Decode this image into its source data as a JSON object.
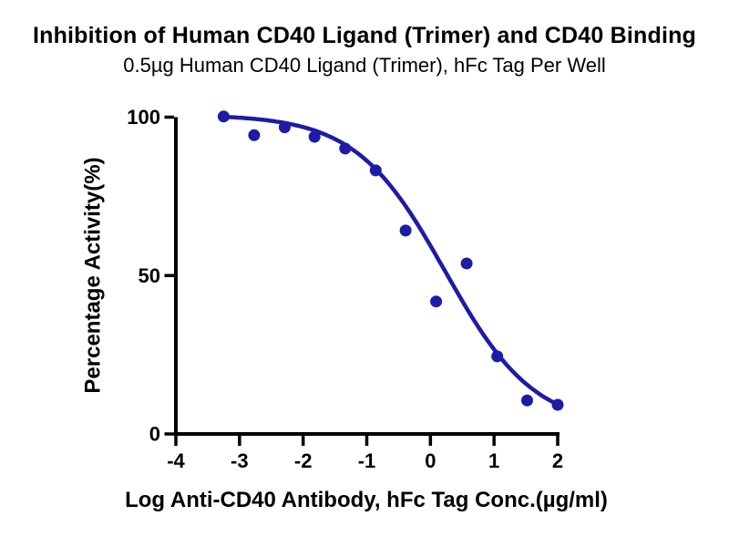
{
  "page": {
    "background": "#FFFFFF"
  },
  "header": {
    "title": "Inhibition of Human CD40 Ligand (Trimer) and CD40 Binding",
    "subtitle": "0.5µg Human CD40 Ligand (Trimer), hFc Tag Per Well"
  },
  "chart_data": {
    "type": "scatter",
    "title": "Inhibition of Human CD40 Ligand (Trimer) and CD40 Binding",
    "subtitle": "0.5µg Human CD40 Ligand (Trimer), hFc Tag Per Well",
    "xlabel": "Log Anti-CD40 Antibody, hFc Tag Conc.(µg/ml)",
    "ylabel": "Percentage Activity(%)",
    "xlim": [
      -4,
      2
    ],
    "ylim": [
      0,
      100
    ],
    "xticks": [
      -4,
      -3,
      -2,
      -1,
      0,
      1,
      2
    ],
    "yticks": [
      0,
      50,
      100
    ],
    "grid": false,
    "legend": "none",
    "axis_color": "#000000",
    "series": [
      {
        "name": "Anti-CD40 Antibody, hFc Tag",
        "marker": "circle",
        "marker_color": "#1C1CA6",
        "points": [
          {
            "x": -3.25,
            "y": 100.2
          },
          {
            "x": -2.77,
            "y": 94.3
          },
          {
            "x": -2.29,
            "y": 96.8
          },
          {
            "x": -1.82,
            "y": 93.8
          },
          {
            "x": -1.34,
            "y": 90.1
          },
          {
            "x": -0.86,
            "y": 83.2
          },
          {
            "x": -0.39,
            "y": 64.2
          },
          {
            "x": 0.09,
            "y": 41.8
          },
          {
            "x": 0.57,
            "y": 53.8
          },
          {
            "x": 1.05,
            "y": 24.5
          },
          {
            "x": 1.52,
            "y": 10.6
          },
          {
            "x": 2.0,
            "y": 9.2
          }
        ]
      }
    ],
    "fit_curve": {
      "model": "four_parameter_logistic",
      "top": 100.8,
      "bottom": 2.0,
      "log_ic50": 0.23,
      "hill_slope": 0.62,
      "x_start": -3.27,
      "x_end": 2.07,
      "color": "#1C1CA6"
    }
  }
}
